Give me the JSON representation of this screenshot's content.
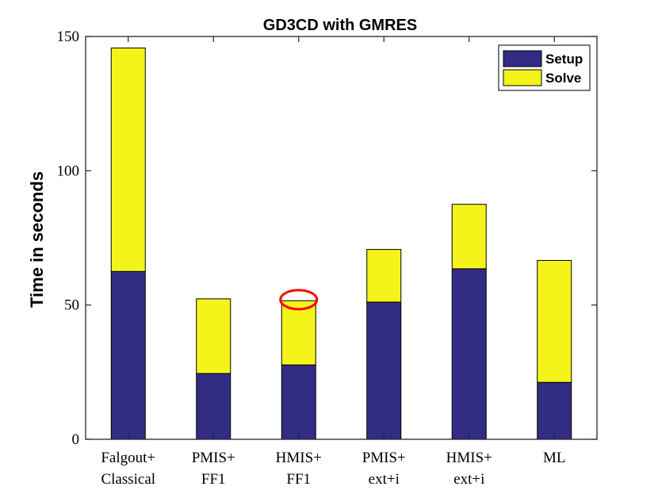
{
  "chart_data": {
    "type": "bar",
    "stacked": true,
    "title": "GD3CD with GMRES",
    "xlabel": "",
    "ylabel": "Time in seconds",
    "ylim": [
      0,
      150
    ],
    "yticks": [
      0,
      50,
      100,
      150
    ],
    "categories": [
      [
        "Falgout+",
        "Classical"
      ],
      [
        "PMIS+",
        "FF1"
      ],
      [
        "HMIS+",
        "FF1"
      ],
      [
        "PMIS+",
        "ext+i"
      ],
      [
        "HMIS+",
        "ext+i"
      ],
      [
        "ML"
      ]
    ],
    "series": [
      {
        "name": "Setup",
        "color": "#332c85",
        "values": [
          62.5,
          24.5,
          27.7,
          51.1,
          63.5,
          21.2
        ]
      },
      {
        "name": "Solve",
        "color": "#f4f41a",
        "values": [
          83.2,
          27.8,
          23.9,
          19.6,
          24.0,
          45.4
        ]
      }
    ],
    "legend_position": "top-right",
    "annotations": [
      {
        "type": "ellipse",
        "category_index": 2,
        "at_value": 52,
        "color": "#ff0000",
        "note": "highlight on top of HMIS+FF1 bar"
      }
    ]
  }
}
